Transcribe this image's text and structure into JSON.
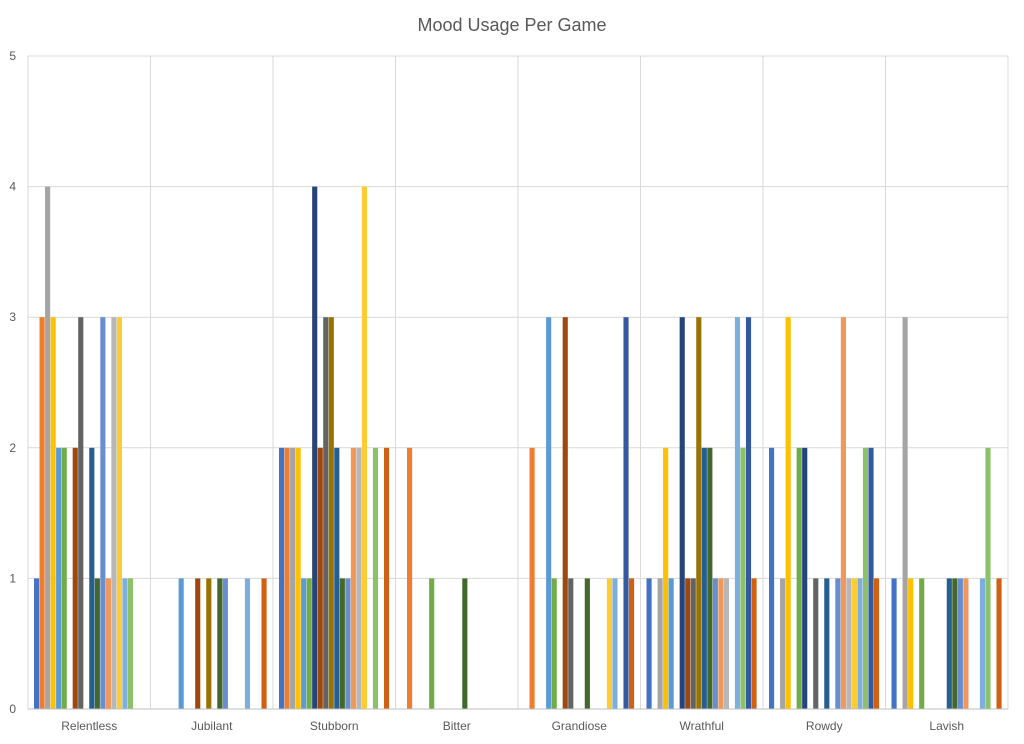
{
  "chart_data": {
    "type": "bar",
    "title": "Mood Usage Per Game",
    "xlabel": "",
    "ylabel": "",
    "ylim": [
      0,
      5
    ],
    "y_ticks": [
      "0",
      "1",
      "2",
      "3",
      "4",
      "5"
    ],
    "grid": true,
    "legend": "none",
    "categories": [
      "Relentless",
      "Jubilant",
      "Stubborn",
      "Bitter",
      "Grandiose",
      "Wrathful",
      "Rowdy",
      "Lavish"
    ],
    "series_colors": [
      "#4472c4",
      "#ed7d31",
      "#a5a5a5",
      "#ffc000",
      "#5b9bd5",
      "#70ad47",
      "#264478",
      "#9e480e",
      "#636363",
      "#997300",
      "#255e91",
      "#43682b",
      "#698ed0",
      "#f1975a",
      "#b7b7b7",
      "#ffcd33",
      "#7cafdd",
      "#8cc168",
      "#335aa1",
      "#d26012"
    ],
    "values_by_category": [
      [
        1,
        3,
        4,
        3,
        2,
        2,
        0,
        2,
        3,
        0,
        2,
        1,
        3,
        1,
        3,
        3,
        1,
        1,
        0,
        0
      ],
      [
        0,
        0,
        0,
        0,
        1,
        0,
        0,
        1,
        0,
        1,
        0,
        1,
        1,
        0,
        0,
        0,
        1,
        0,
        0,
        1
      ],
      [
        2,
        2,
        2,
        2,
        1,
        1,
        4,
        2,
        3,
        3,
        2,
        1,
        1,
        2,
        2,
        4,
        0,
        2,
        0,
        2
      ],
      [
        0,
        2,
        0,
        0,
        0,
        1,
        0,
        0,
        0,
        0,
        0,
        1,
        0,
        0,
        0,
        0,
        0,
        0,
        0,
        0
      ],
      [
        0,
        2,
        0,
        0,
        3,
        1,
        0,
        3,
        1,
        0,
        0,
        1,
        0,
        0,
        0,
        1,
        1,
        0,
        3,
        1
      ],
      [
        1,
        0,
        1,
        2,
        1,
        0,
        3,
        1,
        1,
        3,
        2,
        2,
        1,
        1,
        1,
        0,
        3,
        2,
        3,
        1
      ],
      [
        2,
        0,
        1,
        3,
        0,
        2,
        2,
        0,
        1,
        0,
        1,
        0,
        1,
        3,
        1,
        1,
        1,
        2,
        2,
        1
      ],
      [
        1,
        0,
        3,
        1,
        0,
        1,
        0,
        0,
        0,
        0,
        1,
        1,
        1,
        1,
        0,
        0,
        1,
        2,
        0,
        1
      ]
    ]
  }
}
